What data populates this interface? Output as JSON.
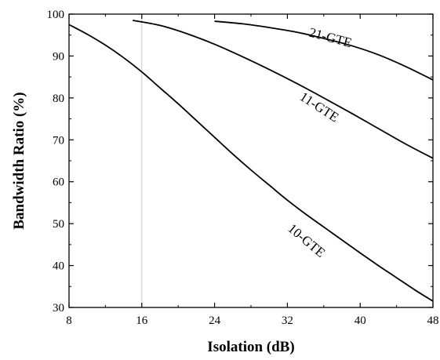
{
  "chart_data": {
    "type": "line",
    "title": "",
    "xlabel": "Isolation (dB)",
    "ylabel": "Bandwidth Ratio (%)",
    "xlim": [
      8,
      48
    ],
    "ylim": [
      30,
      100
    ],
    "xticks": [
      8,
      16,
      24,
      32,
      40,
      48
    ],
    "yticks": [
      30,
      40,
      50,
      60,
      70,
      80,
      90,
      100
    ],
    "reference_line_x": 16,
    "legend": "inline labels",
    "series": [
      {
        "name": "10-GTE",
        "x": [
          8,
          10,
          12,
          14,
          16,
          18,
          20,
          22,
          24,
          26,
          28,
          30,
          32,
          34,
          36,
          38,
          40,
          42,
          44,
          46,
          48
        ],
        "y": [
          97.5,
          95.2,
          92.6,
          89.6,
          86.2,
          82.4,
          78.6,
          74.6,
          70.6,
          66.6,
          62.8,
          59.2,
          55.6,
          52.3,
          49.2,
          46.1,
          43.0,
          40.0,
          37.1,
          34.2,
          31.5
        ]
      },
      {
        "name": "11-GTE",
        "x": [
          15,
          18,
          21,
          24,
          27,
          30,
          33,
          36,
          39,
          42,
          45,
          48
        ],
        "y": [
          98.5,
          97.3,
          95.3,
          92.8,
          89.9,
          86.8,
          83.5,
          80.0,
          76.4,
          72.7,
          69.0,
          65.6
        ]
      },
      {
        "name": "21-GTE",
        "x": [
          24,
          27,
          30,
          33,
          36,
          39,
          42,
          45,
          48
        ],
        "y": [
          98.3,
          97.7,
          96.8,
          95.7,
          94.2,
          92.5,
          90.3,
          87.5,
          84.3
        ]
      }
    ]
  }
}
